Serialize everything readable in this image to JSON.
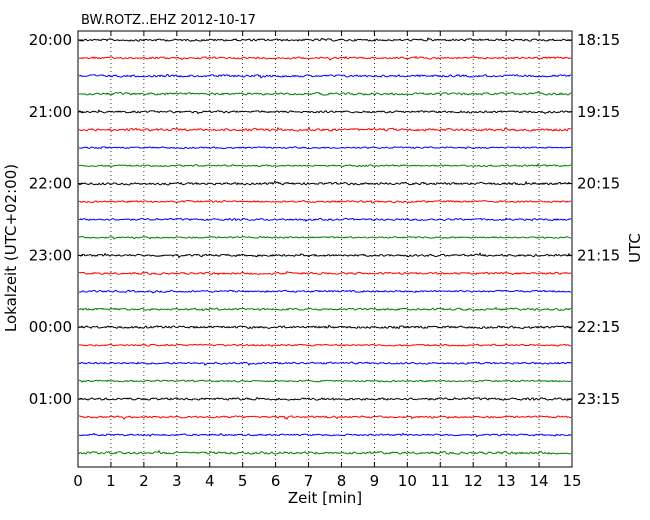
{
  "chart_data": {
    "type": "line",
    "title": "BW.ROTZ..EHZ 2012-10-17",
    "xlabel": "Zeit  [min]",
    "ylabel_left": "Lokalzeit (UTC+02:00)",
    "ylabel_right": "UTC",
    "xlim": [
      0,
      15
    ],
    "x_ticks": [
      "0",
      "1",
      "2",
      "3",
      "4",
      "5",
      "6",
      "7",
      "8",
      "9",
      "10",
      "11",
      "12",
      "13",
      "14",
      "15"
    ],
    "left_tick_labels": [
      "20:00",
      "21:00",
      "22:00",
      "23:00",
      "00:00",
      "01:00"
    ],
    "right_tick_labels": [
      "18:15",
      "19:15",
      "20:15",
      "21:15",
      "22:15",
      "23:15"
    ],
    "trace_count": 24,
    "trace_colors": [
      "#000000",
      "#ff0000",
      "#0000ff",
      "#008000"
    ],
    "grid": "vertical-dotted"
  }
}
